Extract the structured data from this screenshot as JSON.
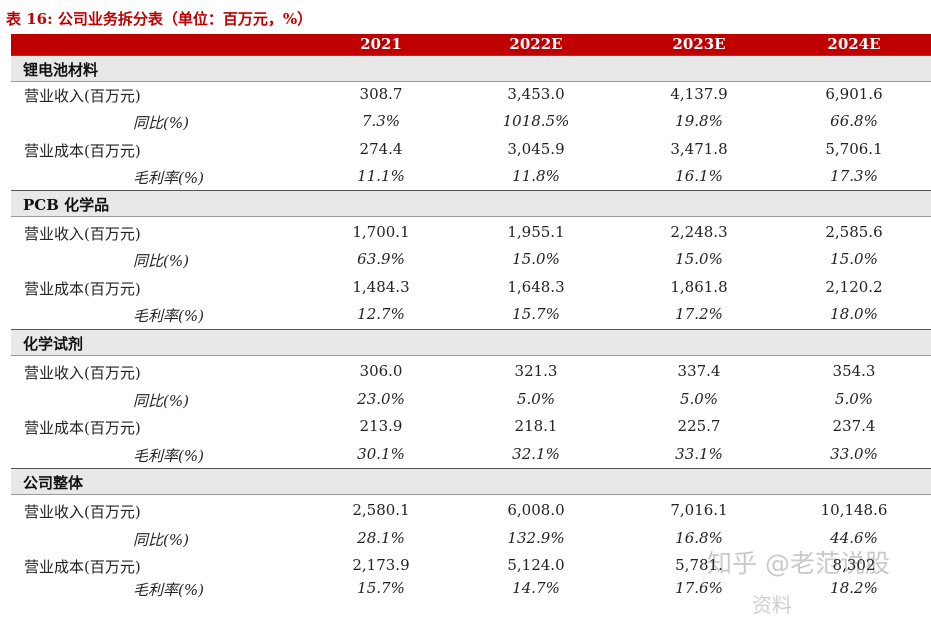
{
  "title": "表 16:  公司业务拆分表（单位：百万元，%）",
  "columns": [
    "2021",
    "2022E",
    "2023E",
    "2024E"
  ],
  "sections": [
    {
      "name": "锂电池材料",
      "rows": [
        {
          "label": "营业收入(百万元)",
          "type": "money",
          "values": [
            "308.7",
            "3,453.0",
            "4,137.9",
            "6,901.6"
          ]
        },
        {
          "label": "同比(%)",
          "type": "pct",
          "values": [
            "7.3%",
            "1018.5%",
            "19.8%",
            "66.8%"
          ]
        },
        {
          "label": "营业成本(百万元)",
          "type": "money",
          "values": [
            "274.4",
            "3,045.9",
            "3,471.8",
            "5,706.1"
          ]
        },
        {
          "label": "毛利率(%)",
          "type": "pct",
          "values": [
            "11.1%",
            "11.8%",
            "16.1%",
            "17.3%"
          ]
        }
      ]
    },
    {
      "name": "PCB 化学品",
      "rows": [
        {
          "label": "营业收入(百万元)",
          "type": "money",
          "values": [
            "1,700.1",
            "1,955.1",
            "2,248.3",
            "2,585.6"
          ]
        },
        {
          "label": "同比(%)",
          "type": "pct",
          "values": [
            "63.9%",
            "15.0%",
            "15.0%",
            "15.0%"
          ]
        },
        {
          "label": "营业成本(百万元)",
          "type": "money",
          "values": [
            "1,484.3",
            "1,648.3",
            "1,861.8",
            "2,120.2"
          ]
        },
        {
          "label": "毛利率(%)",
          "type": "pct",
          "values": [
            "12.7%",
            "15.7%",
            "17.2%",
            "18.0%"
          ]
        }
      ]
    },
    {
      "name": "化学试剂",
      "rows": [
        {
          "label": "营业收入(百万元)",
          "type": "money",
          "values": [
            "306.0",
            "321.3",
            "337.4",
            "354.3"
          ]
        },
        {
          "label": "同比(%)",
          "type": "pct",
          "values": [
            "23.0%",
            "5.0%",
            "5.0%",
            "5.0%"
          ]
        },
        {
          "label": "营业成本(百万元)",
          "type": "money",
          "values": [
            "213.9",
            "218.1",
            "225.7",
            "237.4"
          ]
        },
        {
          "label": "毛利率(%)",
          "type": "pct",
          "values": [
            "30.1%",
            "32.1%",
            "33.1%",
            "33.0%"
          ]
        }
      ]
    },
    {
      "name": "公司整体",
      "rows": [
        {
          "label": "营业收入(百万元)",
          "type": "money",
          "values": [
            "2,580.1",
            "6,008.0",
            "7,016.1",
            "10,148.6"
          ]
        },
        {
          "label": "同比(%)",
          "type": "pct",
          "values": [
            "28.1%",
            "132.9%",
            "16.8%",
            "44.6%"
          ]
        },
        {
          "label": "营业成本(百万元)",
          "type": "money",
          "values": [
            "2,173.9",
            "5,124.0",
            "5,781.",
            "8,302"
          ]
        },
        {
          "label": "毛利率(%)",
          "type": "pct",
          "values": [
            "15.7%",
            "14.7%",
            "17.6%",
            "18.2%"
          ]
        }
      ]
    }
  ],
  "watermark": "知乎 @老范说股",
  "watermark_source": "资料"
}
